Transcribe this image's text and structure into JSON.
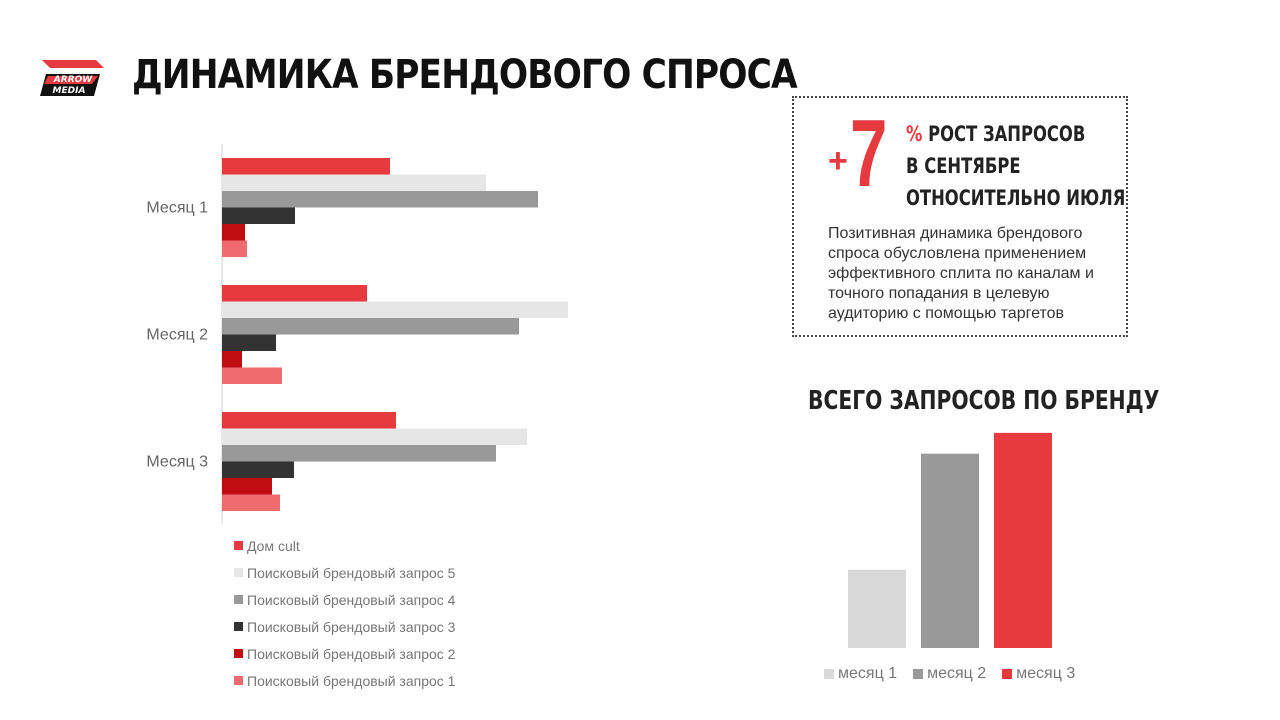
{
  "logo": {
    "line1": "ARROW",
    "line2": "MEDIA"
  },
  "title": "ДИНАМИКА БРЕНДОВОГО СПРОСА",
  "callout": {
    "plus": "+",
    "number": "7",
    "percent": "%",
    "line1": "РОСТ ЗАПРОСОВ",
    "line2": "В СЕНТЯБРЕ",
    "line3": "ОТНОСИТЕЛЬНО ИЮЛЯ",
    "description": "Позитивная динамика брендового спроса обусловлена применением эффективного сплита по каналам и точного попадания в целевую аудиторию с помощью таргетов"
  },
  "chart_data": [
    {
      "type": "bar",
      "orientation": "horizontal",
      "categories": [
        "Месяц 1",
        "Месяц 2",
        "Месяц 3"
      ],
      "series": [
        {
          "name": "Дом cult",
          "color": "#e63a3e",
          "values": [
            168,
            145,
            174
          ]
        },
        {
          "name": "Поисковый брендовый запрос 5",
          "color": "#e6e6e6",
          "values": [
            264,
            346,
            305
          ]
        },
        {
          "name": "Поисковый брендовый запрос 4",
          "color": "#999999",
          "values": [
            316,
            297,
            274
          ]
        },
        {
          "name": "Поисковый брендовый запрос 3",
          "color": "#333333",
          "values": [
            73,
            54,
            72
          ]
        },
        {
          "name": "Поисковый брендовый запрос 2",
          "color": "#c00d12",
          "values": [
            23,
            20,
            50
          ]
        },
        {
          "name": "Поисковый брендовый запрос 1",
          "color": "#f06b6d",
          "values": [
            25,
            60,
            58
          ]
        }
      ],
      "xlim": [
        0,
        420
      ],
      "legend": "bottom"
    },
    {
      "type": "bar",
      "title": "ВСЕГО ЗАПРОСОВ ПО БРЕНДУ",
      "categories": [
        "месяц 1",
        "месяц 2",
        "месяц 3"
      ],
      "values": [
        79,
        196,
        217
      ],
      "colors": [
        "#d9d9d9",
        "#999999",
        "#e63a3e"
      ],
      "ylim": [
        0,
        230
      ],
      "legend": "bottom"
    }
  ]
}
